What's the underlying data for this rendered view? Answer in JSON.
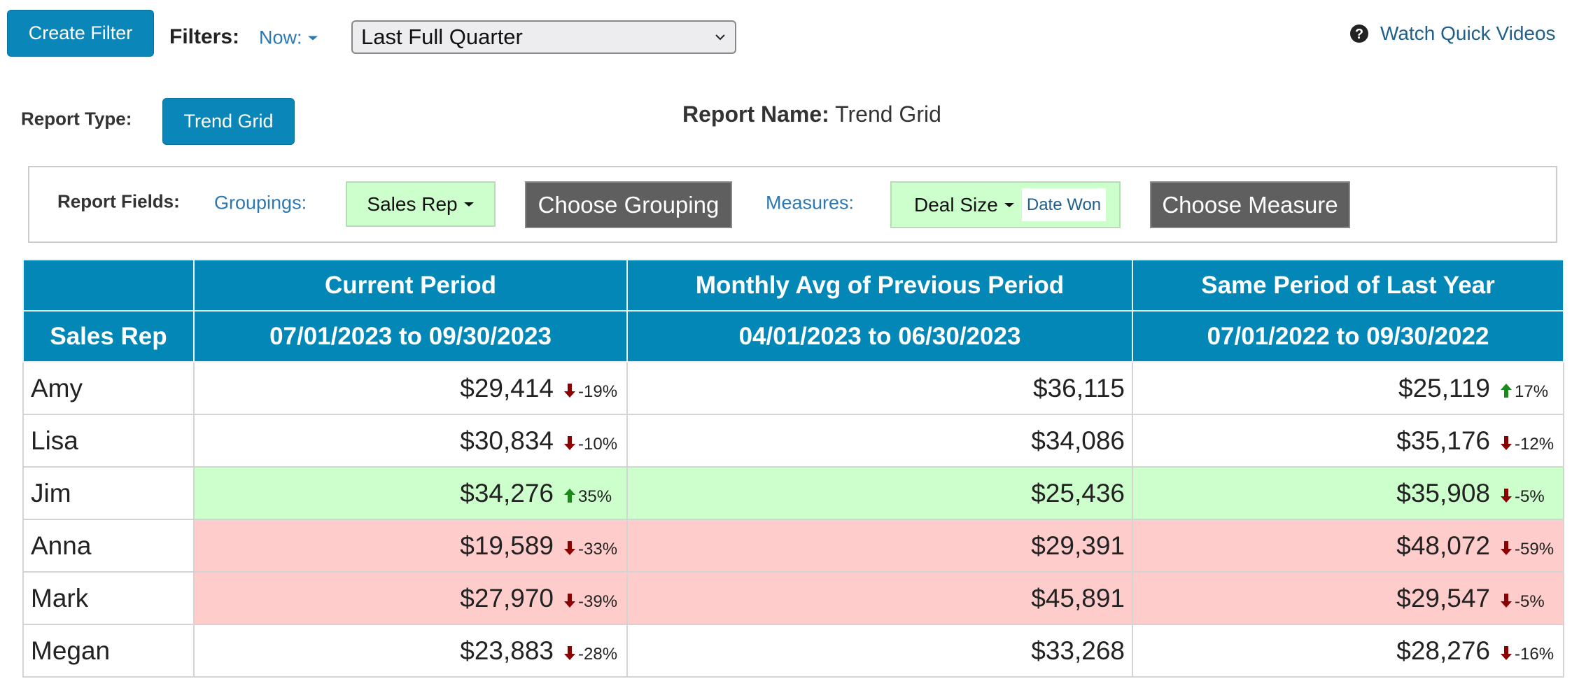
{
  "toolbar": {
    "create_filter": "Create Filter",
    "filters_label": "Filters:",
    "now": "Now:",
    "period": "Last Full Quarter",
    "help": "Watch Quick Videos"
  },
  "report": {
    "type_label": "Report Type:",
    "type": "Trend Grid",
    "name_label": "Report Name:",
    "name": "Trend Grid"
  },
  "fields": {
    "label": "Report Fields:",
    "groupings_label": "Groupings:",
    "grouping": "Sales Rep",
    "choose_grouping": "Choose Grouping",
    "measures_label": "Measures:",
    "measure": "Deal Size",
    "measure_date": "Date Won",
    "choose_measure": "Choose Measure"
  },
  "table": {
    "group_header": "Sales Rep",
    "headers": [
      "Current Period",
      "Monthly Avg of Previous Period",
      "Same Period of Last Year"
    ],
    "dates": [
      "07/01/2023 to 09/30/2023",
      "04/01/2023 to 06/30/2023",
      "07/01/2022 to 09/30/2022"
    ],
    "rows": [
      {
        "name": "Amy",
        "current": "$29,414",
        "current_change": "-19%",
        "previous": "$36,115",
        "last_year": "$25,119",
        "last_year_change": "17%"
      },
      {
        "name": "Lisa",
        "current": "$30,834",
        "current_change": "-10%",
        "previous": "$34,086",
        "last_year": "$35,176",
        "last_year_change": "-12%"
      },
      {
        "name": "Jim",
        "current": "$34,276",
        "current_change": "35%",
        "previous": "$25,436",
        "last_year": "$35,908",
        "last_year_change": "-5%",
        "highlight": "#ccffcc"
      },
      {
        "name": "Anna",
        "current": "$19,589",
        "current_change": "-33%",
        "previous": "$29,391",
        "last_year": "$48,072",
        "last_year_change": "-59%",
        "highlight": "#ffcccc"
      },
      {
        "name": "Mark",
        "current": "$27,970",
        "current_change": "-39%",
        "previous": "$45,891",
        "last_year": "$29,547",
        "last_year_change": "-5%",
        "highlight": "#ffcccc"
      },
      {
        "name": "Megan",
        "current": "$23,883",
        "current_change": "-28%",
        "previous": "$33,268",
        "last_year": "$28,276",
        "last_year_change": "-16%"
      }
    ]
  }
}
